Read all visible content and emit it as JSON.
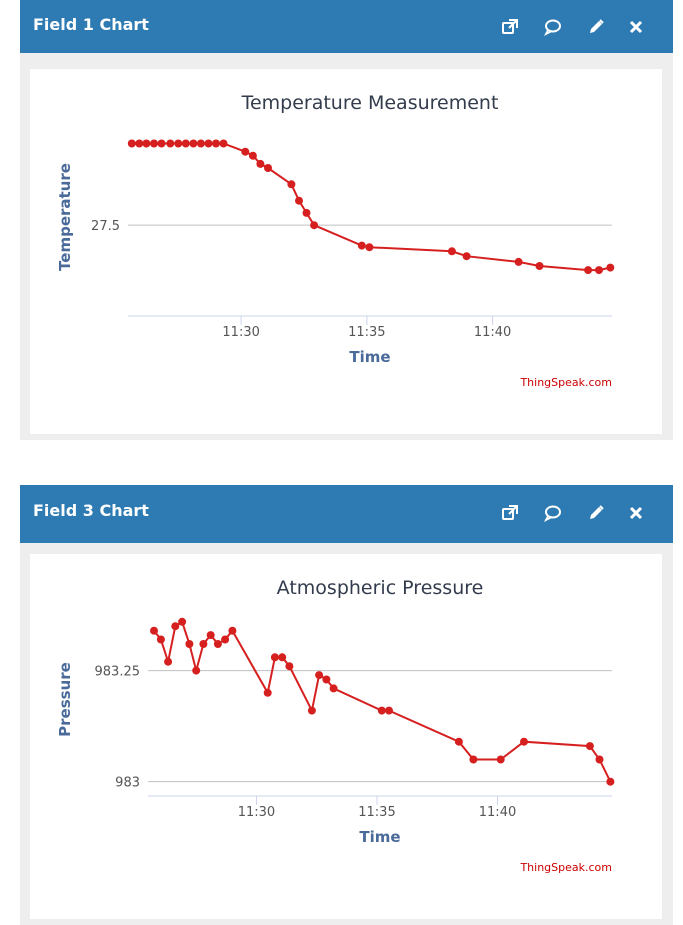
{
  "panels": [
    {
      "title": "Field 1 Chart",
      "icons": [
        "external-link-icon",
        "comment-icon",
        "pencil-icon",
        "close-icon"
      ]
    },
    {
      "title": "Field 3 Chart",
      "icons": [
        "external-link-icon",
        "comment-icon",
        "pencil-icon",
        "close-icon"
      ]
    }
  ],
  "colors": {
    "header": "#2e7bb3",
    "series": "#d62020",
    "axis_title": "#4a6a9a",
    "grid": "#c0c0c0",
    "credit": "#cc0000"
  },
  "chart_data": [
    {
      "type": "line",
      "title": "Temperature Measurement",
      "xlabel": "Time",
      "ylabel": "Temperature",
      "x_ticks": [
        "11:30",
        "11:35",
        "11:40"
      ],
      "y_ticks": [
        27.5
      ],
      "xlim": [
        "11:25:30",
        "11:44:45"
      ],
      "ylim": [
        27.39,
        27.63
      ],
      "grid": true,
      "legend": "none",
      "credit": "ThingSpeak.com",
      "series": [
        {
          "x": [
            "11:25:39",
            "11:25:57",
            "11:26:14",
            "11:26:32",
            "11:26:50",
            "11:27:11",
            "11:27:30",
            "11:27:48",
            "11:28:06",
            "11:28:24",
            "11:28:42",
            "11:29:00",
            "11:29:18",
            "11:30:10",
            "11:30:28",
            "11:30:46",
            "11:31:04",
            "11:32:00",
            "11:32:18",
            "11:32:36",
            "11:32:54",
            "11:34:48",
            "11:35:06",
            "11:38:23",
            "11:38:58",
            "11:41:02",
            "11:41:52",
            "11:43:48",
            "11:44:14",
            "11:44:41"
          ],
          "y": [
            27.6,
            27.6,
            27.6,
            27.6,
            27.6,
            27.6,
            27.6,
            27.6,
            27.6,
            27.6,
            27.6,
            27.6,
            27.6,
            27.59,
            27.585,
            27.575,
            27.57,
            27.55,
            27.53,
            27.515,
            27.5,
            27.475,
            27.473,
            27.468,
            27.462,
            27.455,
            27.45,
            27.445,
            27.445,
            27.448
          ]
        }
      ]
    },
    {
      "type": "line",
      "title": "Atmospheric Pressure",
      "xlabel": "Time",
      "ylabel": "Pressure",
      "x_ticks": [
        "11:30",
        "11:35",
        "11:40"
      ],
      "y_ticks": [
        983,
        983.25
      ],
      "xlim": [
        "11:25:30",
        "11:44:45"
      ],
      "ylim": [
        982.97,
        983.4
      ],
      "grid": true,
      "legend": "none",
      "credit": "ThingSpeak.com",
      "series": [
        {
          "x": [
            "11:25:45",
            "11:26:02",
            "11:26:20",
            "11:26:38",
            "11:26:55",
            "11:27:13",
            "11:27:30",
            "11:27:48",
            "11:28:06",
            "11:28:24",
            "11:28:42",
            "11:29:00",
            "11:30:28",
            "11:30:46",
            "11:31:04",
            "11:31:22",
            "11:32:18",
            "11:32:36",
            "11:32:54",
            "11:33:12",
            "11:35:12",
            "11:35:30",
            "11:38:24",
            "11:39:00",
            "11:40:08",
            "11:41:06",
            "11:43:50",
            "11:44:14",
            "11:44:41"
          ],
          "y": [
            983.34,
            983.32,
            983.27,
            983.35,
            983.36,
            983.31,
            983.25,
            983.31,
            983.33,
            983.31,
            983.32,
            983.34,
            983.2,
            983.28,
            983.28,
            983.26,
            983.16,
            983.24,
            983.23,
            983.21,
            983.16,
            983.16,
            983.09,
            983.05,
            983.05,
            983.09,
            983.08,
            983.05,
            983.0
          ]
        }
      ]
    }
  ]
}
